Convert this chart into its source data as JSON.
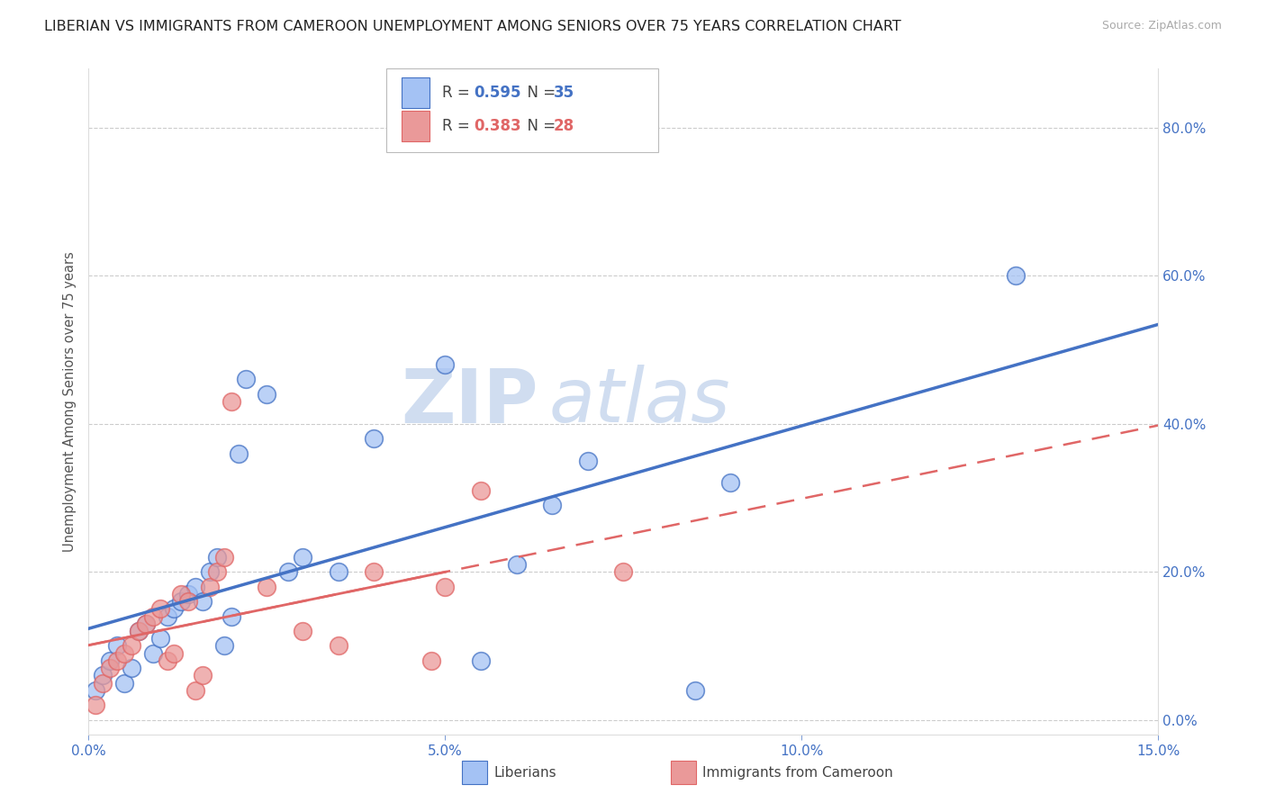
{
  "title": "LIBERIAN VS IMMIGRANTS FROM CAMEROON UNEMPLOYMENT AMONG SENIORS OVER 75 YEARS CORRELATION CHART",
  "source": "Source: ZipAtlas.com",
  "ylabel": "Unemployment Among Seniors over 75 years",
  "xlim": [
    0.0,
    0.15
  ],
  "ylim": [
    -0.02,
    0.88
  ],
  "xticks": [
    0.0,
    0.05,
    0.1,
    0.15
  ],
  "xtick_labels": [
    "0.0%",
    "5.0%",
    "10.0%",
    "15.0%"
  ],
  "yticks_right": [
    0.0,
    0.2,
    0.4,
    0.6,
    0.8
  ],
  "ytick_labels_right": [
    "0.0%",
    "20.0%",
    "40.0%",
    "60.0%",
    "80.0%"
  ],
  "blue_color": "#a4c2f4",
  "pink_color": "#ea9999",
  "line_blue": "#4472c4",
  "line_pink": "#e06666",
  "legend_R_blue": "0.595",
  "legend_N_blue": "35",
  "legend_R_pink": "0.383",
  "legend_N_pink": "28",
  "legend_label_blue": "Liberians",
  "legend_label_pink": "Immigrants from Cameroon",
  "watermark_zip": "ZIP",
  "watermark_atlas": "atlas",
  "blue_x": [
    0.001,
    0.002,
    0.003,
    0.004,
    0.005,
    0.006,
    0.007,
    0.008,
    0.009,
    0.01,
    0.011,
    0.012,
    0.013,
    0.014,
    0.015,
    0.016,
    0.017,
    0.018,
    0.019,
    0.02,
    0.021,
    0.022,
    0.025,
    0.028,
    0.03,
    0.035,
    0.04,
    0.05,
    0.055,
    0.06,
    0.065,
    0.07,
    0.085,
    0.09,
    0.13
  ],
  "blue_y": [
    0.04,
    0.06,
    0.08,
    0.1,
    0.05,
    0.07,
    0.12,
    0.13,
    0.09,
    0.11,
    0.14,
    0.15,
    0.16,
    0.17,
    0.18,
    0.16,
    0.2,
    0.22,
    0.1,
    0.14,
    0.36,
    0.46,
    0.44,
    0.2,
    0.22,
    0.2,
    0.38,
    0.48,
    0.08,
    0.21,
    0.29,
    0.35,
    0.04,
    0.32,
    0.6
  ],
  "pink_x": [
    0.001,
    0.002,
    0.003,
    0.004,
    0.005,
    0.006,
    0.007,
    0.008,
    0.009,
    0.01,
    0.011,
    0.012,
    0.013,
    0.014,
    0.015,
    0.016,
    0.017,
    0.018,
    0.019,
    0.02,
    0.025,
    0.03,
    0.035,
    0.04,
    0.048,
    0.05,
    0.055,
    0.075
  ],
  "pink_y": [
    0.02,
    0.05,
    0.07,
    0.08,
    0.09,
    0.1,
    0.12,
    0.13,
    0.14,
    0.15,
    0.08,
    0.09,
    0.17,
    0.16,
    0.04,
    0.06,
    0.18,
    0.2,
    0.22,
    0.43,
    0.18,
    0.12,
    0.1,
    0.2,
    0.08,
    0.18,
    0.31,
    0.2
  ],
  "background_color": "#ffffff",
  "grid_color": "#cccccc",
  "title_fontsize": 11.5,
  "tick_color": "#4472c4",
  "tick_label_color": "#4472c4"
}
